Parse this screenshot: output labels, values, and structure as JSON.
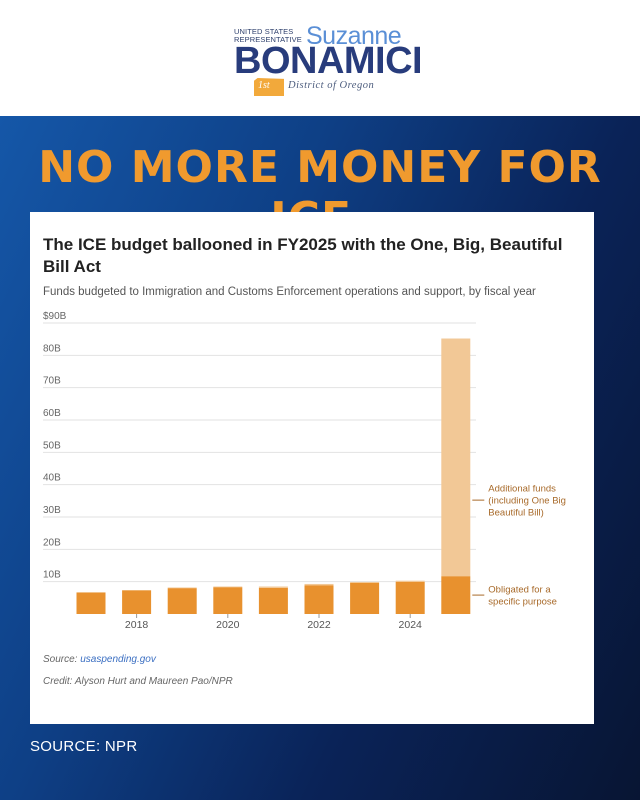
{
  "header": {
    "logo_small": "United States Representative",
    "first_name": "Suzanne",
    "last_name": "BONAMICI",
    "district_number": "1st",
    "district_text": "District of Oregon"
  },
  "headline": "NO MORE MONEY FOR ICE.",
  "footer_source": "SOURCE: NPR",
  "card": {
    "source_label": "Source: ",
    "source_link": "usaspending.gov",
    "credit": "Credit: Alyson Hurt and Maureen Pao/NPR"
  },
  "colors": {
    "obligated": "#e8912e",
    "additional": "#f2c896",
    "annotation": "#a86a2a",
    "headline": "#f09a2e",
    "brand": "#283c7c"
  },
  "chart_data": {
    "type": "bar",
    "stacked": true,
    "title": "The ICE budget ballooned in FY2025 with the One, Big, Beautiful Bill Act",
    "subtitle": "Funds budgeted to Immigration and Customs Enforcement operations and support, by fiscal year",
    "xlabel": "",
    "ylabel": "",
    "ylim": [
      0,
      90
    ],
    "y_ticks": [
      {
        "value": 10,
        "label": "10B"
      },
      {
        "value": 20,
        "label": "20B"
      },
      {
        "value": 30,
        "label": "30B"
      },
      {
        "value": 40,
        "label": "40B"
      },
      {
        "value": 50,
        "label": "50B"
      },
      {
        "value": 60,
        "label": "60B"
      },
      {
        "value": 70,
        "label": "70B"
      },
      {
        "value": 80,
        "label": "80B"
      },
      {
        "value": 90,
        "label": "$90B"
      }
    ],
    "categories": [
      2017,
      2018,
      2019,
      2020,
      2021,
      2022,
      2023,
      2024,
      2025
    ],
    "x_tick_labels": [
      {
        "category": 2018,
        "label": "2018"
      },
      {
        "category": 2020,
        "label": "2020"
      },
      {
        "category": 2022,
        "label": "2022"
      },
      {
        "category": 2024,
        "label": "2024"
      }
    ],
    "series": [
      {
        "name": "Obligated for a specific purpose",
        "values": [
          6.6,
          7.3,
          8.0,
          8.3,
          8.1,
          8.9,
          9.6,
          9.9,
          11.7
        ]
      },
      {
        "name": "Additional funds (including One Big Beautiful Bill)",
        "values": [
          0.2,
          0.1,
          0.2,
          0.2,
          0.4,
          0.4,
          0.3,
          0.4,
          73.5
        ]
      }
    ],
    "annotations": [
      {
        "series": 1,
        "lines": [
          "Additional funds",
          "(including One Big",
          "Beautiful Bill)"
        ]
      },
      {
        "series": 0,
        "lines": [
          "Obligated for a",
          "specific purpose"
        ]
      }
    ]
  }
}
